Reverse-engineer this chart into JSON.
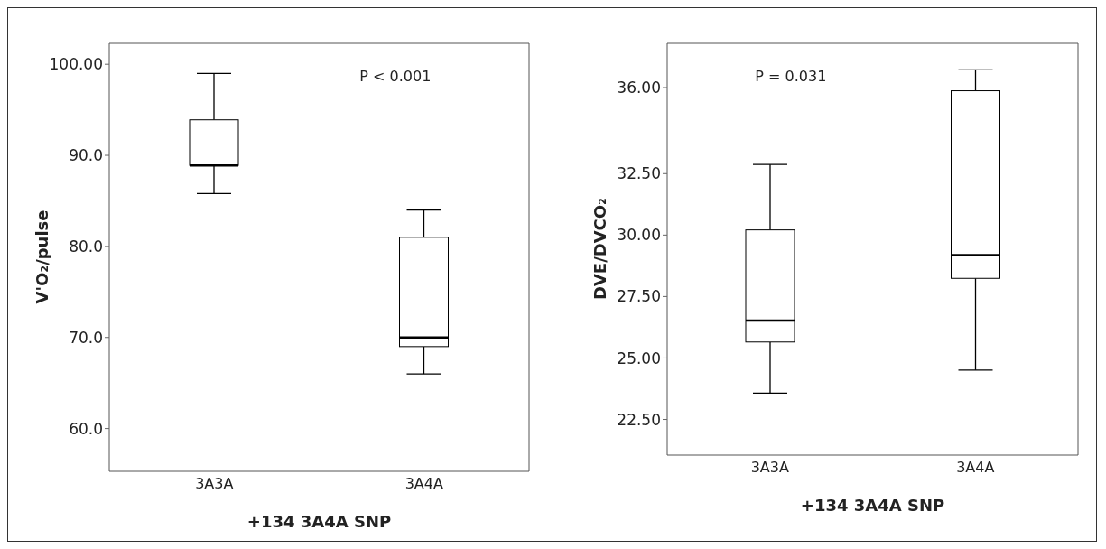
{
  "chart_data": [
    {
      "type": "box",
      "categories": [
        "3A3A",
        "3A4A"
      ],
      "xlabel": "+134 3A4A SNP",
      "ylabel": "V'O₂/pulse",
      "ylim": [
        55.3,
        102.3
      ],
      "yticks": [
        {
          "value": 60,
          "label": "60.0"
        },
        {
          "value": 70,
          "label": "70.0"
        },
        {
          "value": 80,
          "label": "80.0"
        },
        {
          "value": 90,
          "label": "90.0"
        },
        {
          "value": 100,
          "label": "100.00"
        }
      ],
      "grid": false,
      "annotations": [
        "P < 0.001"
      ],
      "boxes": [
        {
          "low": 85.8,
          "q1": 88.9,
          "median": 88.9,
          "q3": 93.9,
          "high": 99.0
        },
        {
          "low": 66,
          "q1": 69,
          "median": 70,
          "q3": 81,
          "high": 84
        }
      ]
    },
    {
      "type": "box",
      "categories": [
        "3A3A",
        "3A4A"
      ],
      "xlabel": "+134 3A4A SNP",
      "ylabel": "DVE/DVCO₂",
      "ylim": [
        21.05,
        37.8
      ],
      "yticks": [
        {
          "value": 22.5,
          "label": "22.50"
        },
        {
          "value": 25,
          "label": "25.00"
        },
        {
          "value": 27.5,
          "label": "27.50"
        },
        {
          "value": 30,
          "label": "30.00"
        },
        {
          "value": 32.5,
          "label": "32.50"
        },
        {
          "value": 36,
          "label": "36.00"
        }
      ],
      "grid": false,
      "annotations": [
        "P = 0.031"
      ],
      "boxes": [
        {
          "low": 23.57,
          "q1": 25.65,
          "median": 26.52,
          "q3": 30.21,
          "high": 32.87
        },
        {
          "low": 24.51,
          "q1": 28.24,
          "median": 29.19,
          "q3": 35.87,
          "high": 36.72
        }
      ]
    }
  ]
}
